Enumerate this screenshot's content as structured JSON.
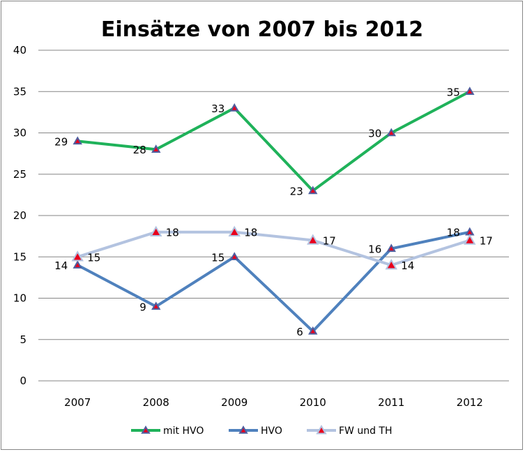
{
  "chart_data": {
    "type": "line",
    "title": "Einsätze von 2007 bis 2012",
    "categories": [
      "2007",
      "2008",
      "2009",
      "2010",
      "2011",
      "2012"
    ],
    "ylim": [
      0,
      40
    ],
    "yticks": [
      "0",
      "5",
      "10",
      "15",
      "20",
      "25",
      "30",
      "35",
      "40"
    ],
    "grid": true,
    "legend": "bottom",
    "series": [
      {
        "name": "mit HVO",
        "values": [
          29,
          28,
          33,
          23,
          30,
          35
        ],
        "color": "#1fb25a",
        "label_side": "left"
      },
      {
        "name": "HVO",
        "values": [
          14,
          9,
          15,
          6,
          16,
          18
        ],
        "color": "#4f81bd",
        "label_side": "left"
      },
      {
        "name": "FW und TH",
        "values": [
          15,
          18,
          18,
          17,
          14,
          17
        ],
        "color": "#b3c3e0",
        "label_side": "right"
      }
    ],
    "marker_color": "#e8001c"
  }
}
